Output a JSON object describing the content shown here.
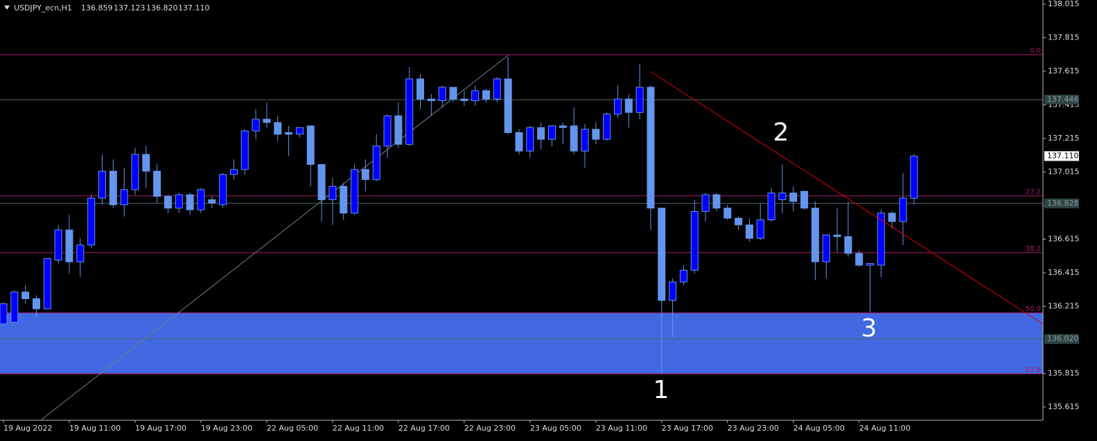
{
  "chart_data": {
    "type": "candlestick",
    "title": "USDJPY_ecn,H1",
    "header_values": [
      "136.859",
      "137.123",
      "136.820",
      "137.110"
    ],
    "categories": [
      "19 Aug 2022",
      null,
      null,
      null,
      null,
      null,
      "19 Aug 11:00",
      null,
      null,
      null,
      null,
      null,
      "19 Aug 17:00",
      null,
      null,
      null,
      null,
      null,
      "19 Aug 23:00",
      null,
      null,
      null,
      null,
      null,
      "22 Aug 05:00",
      null,
      null,
      null,
      null,
      null,
      "22 Aug 11:00",
      null,
      null,
      null,
      null,
      null,
      "22 Aug 17:00",
      null,
      null,
      null,
      null,
      null,
      "22 Aug 23:00",
      null,
      null,
      null,
      null,
      null,
      "23 Aug 05:00",
      null,
      null,
      null,
      null,
      null,
      "23 Aug 11:00",
      null,
      null,
      null,
      null,
      null,
      "23 Aug 17:00",
      null,
      null,
      null,
      null,
      null,
      "23 Aug 23:00",
      null,
      null,
      null,
      null,
      null,
      "24 Aug 05:00",
      null,
      null,
      null,
      null,
      null,
      "24 Aug 11:00",
      null,
      null,
      null,
      null,
      null
    ],
    "open": [
      136.11,
      136.12,
      136.3,
      136.26,
      136.2,
      136.49,
      136.67,
      136.48,
      136.58,
      136.86,
      137.02,
      136.82,
      136.91,
      137.12,
      137.02,
      136.87,
      136.8,
      136.88,
      136.79,
      136.85,
      136.82,
      137.0,
      137.03,
      137.26,
      137.33,
      137.31,
      137.25,
      137.24,
      137.29,
      137.06,
      136.85,
      136.93,
      136.77,
      137.03,
      136.97,
      137.17,
      137.35,
      137.18,
      137.57,
      137.45,
      137.44,
      137.52,
      137.45,
      137.44,
      137.5,
      137.45,
      137.57,
      137.25,
      137.14,
      137.28,
      137.21,
      137.29,
      137.29,
      137.14,
      137.27,
      137.21,
      137.36,
      137.45,
      137.37,
      137.52,
      136.8,
      136.25,
      136.36,
      136.43,
      136.78,
      136.88,
      136.8,
      136.74,
      136.7,
      136.62,
      136.73,
      136.85,
      136.89,
      136.9,
      136.8,
      136.48,
      136.64,
      136.63,
      136.53,
      136.46,
      136.46,
      136.77,
      136.72,
      136.859
    ],
    "high": [
      136.24,
      136.31,
      136.34,
      136.28,
      136.5,
      136.7,
      136.76,
      136.62,
      136.88,
      137.12,
      137.09,
      137.04,
      137.16,
      137.17,
      137.06,
      136.88,
      136.89,
      136.89,
      136.92,
      136.87,
      137.01,
      137.09,
      137.27,
      137.39,
      137.43,
      137.35,
      137.29,
      137.28,
      137.29,
      137.06,
      136.98,
      136.95,
      137.06,
      137.09,
      137.24,
      137.36,
      137.43,
      137.64,
      137.6,
      137.48,
      137.53,
      137.52,
      137.5,
      137.53,
      137.51,
      137.58,
      137.7,
      137.27,
      137.29,
      137.31,
      137.29,
      137.31,
      137.4,
      137.3,
      137.31,
      137.37,
      137.53,
      137.48,
      137.66,
      137.53,
      136.8,
      136.38,
      136.46,
      136.85,
      136.89,
      136.89,
      136.82,
      136.75,
      136.74,
      136.83,
      136.92,
      137.06,
      136.93,
      136.9,
      136.84,
      136.64,
      136.8,
      136.84,
      136.55,
      136.47,
      136.79,
      136.78,
      137.01,
      137.123
    ],
    "low": [
      136.1,
      136.12,
      136.23,
      136.15,
      136.2,
      136.47,
      136.41,
      136.39,
      136.56,
      136.82,
      136.8,
      136.75,
      136.88,
      136.92,
      136.83,
      136.77,
      136.77,
      136.76,
      136.77,
      136.8,
      136.8,
      136.97,
      137.0,
      137.21,
      137.28,
      137.2,
      137.11,
      137.22,
      136.93,
      136.72,
      136.7,
      136.73,
      136.76,
      136.9,
      136.96,
      137.1,
      137.16,
      137.17,
      137.39,
      137.35,
      137.4,
      137.43,
      137.41,
      137.41,
      137.43,
      137.43,
      137.24,
      137.12,
      137.1,
      137.15,
      137.17,
      137.18,
      137.12,
      137.04,
      137.18,
      137.2,
      137.34,
      137.28,
      137.33,
      136.67,
      135.81,
      136.03,
      136.34,
      136.41,
      136.72,
      136.78,
      136.73,
      136.67,
      136.6,
      136.61,
      136.72,
      136.77,
      136.78,
      136.79,
      136.37,
      136.38,
      136.54,
      136.51,
      136.45,
      136.18,
      136.39,
      136.68,
      136.58,
      136.82
    ],
    "close": [
      136.23,
      136.3,
      136.26,
      136.2,
      136.5,
      136.67,
      136.48,
      136.58,
      136.86,
      137.02,
      136.82,
      136.91,
      137.12,
      137.02,
      136.87,
      136.8,
      136.88,
      136.79,
      136.91,
      136.83,
      137.0,
      137.03,
      137.26,
      137.33,
      137.31,
      137.24,
      137.24,
      137.28,
      137.06,
      136.85,
      136.93,
      136.77,
      137.03,
      136.97,
      137.17,
      137.35,
      137.18,
      137.57,
      137.45,
      137.44,
      137.52,
      137.45,
      137.44,
      137.5,
      137.45,
      137.57,
      137.25,
      137.14,
      137.28,
      137.21,
      137.29,
      137.28,
      137.14,
      137.27,
      137.21,
      137.36,
      137.45,
      137.37,
      137.52,
      136.8,
      136.25,
      136.36,
      136.43,
      136.78,
      136.88,
      136.8,
      136.74,
      136.7,
      136.62,
      136.73,
      136.89,
      136.89,
      136.84,
      136.8,
      136.48,
      136.64,
      136.63,
      136.53,
      136.46,
      136.47,
      136.77,
      136.72,
      136.86,
      137.11
    ],
    "colors": {
      "up_fill": "#0000ff",
      "down_fill": "#6495ed",
      "wick": "#6495ed"
    },
    "ylim": [
      135.536,
      138.04
    ],
    "yticks": [
      138.015,
      137.815,
      137.615,
      137.415,
      137.215,
      137.015,
      136.815,
      136.615,
      136.415,
      136.215,
      135.815,
      135.615
    ],
    "levels": [
      137.446,
      136.828,
      {
        "value": 136.02,
        "label": "136.020"
      }
    ],
    "current_price": {
      "value": 137.11,
      "label": "137.110"
    },
    "fib": {
      "color": "#b0186e",
      "zone_color": "#4169e1",
      "levels": [
        {
          "label": "0.0",
          "price": 137.714
        },
        {
          "label": "27.2",
          "price": 136.873
        },
        {
          "label": "38.2",
          "price": 136.535
        },
        {
          "label": "50.0",
          "price": 136.176
        },
        {
          "label": "61.8",
          "price": 135.813
        }
      ]
    },
    "annotations": [
      "1",
      "2",
      "3"
    ]
  }
}
